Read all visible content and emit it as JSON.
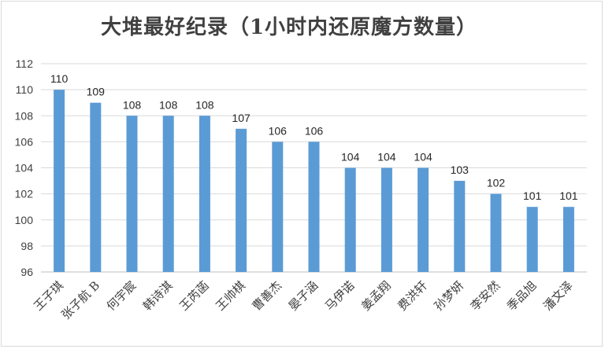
{
  "chart_data": {
    "type": "bar",
    "title": "大堆最好纪录（1小时内还原魔方数量）",
    "categories": [
      "王子琪",
      "张子航 B",
      "何宇宸",
      "韩诗淇",
      "王芮菡",
      "王帅棋",
      "曹善杰",
      "晏子涵",
      "马伊诺",
      "姜孟翔",
      "费洪轩",
      "孙梦妍",
      "李安然",
      "季品旭",
      "潘文泽"
    ],
    "values": [
      110,
      109,
      108,
      108,
      108,
      107,
      106,
      106,
      104,
      104,
      104,
      103,
      102,
      101,
      101
    ],
    "xlabel": "",
    "ylabel": "",
    "ylim": [
      96,
      112
    ],
    "yticks": [
      96,
      98,
      100,
      102,
      104,
      106,
      108,
      110,
      112
    ],
    "grid": true,
    "data_labels": true,
    "bar_color": "#5b9bd5",
    "grid_color": "#d9d9d9",
    "legend": "none"
  }
}
